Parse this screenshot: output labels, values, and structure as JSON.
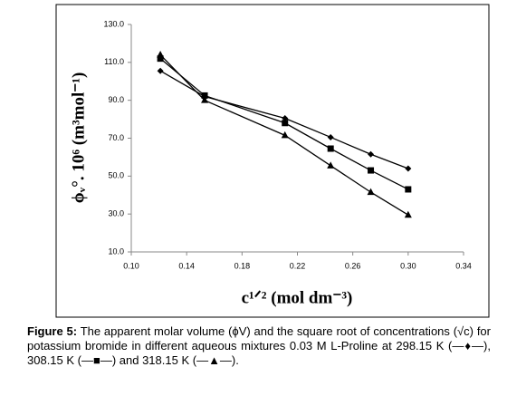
{
  "chart_data": {
    "type": "line",
    "x_label": "c¹ᐟ² (mol dm⁻³)",
    "y_label": "ϕᵥ°. 10⁶ (m³mol⁻¹)",
    "x": [
      0.121,
      0.153,
      0.211,
      0.244,
      0.273,
      0.3
    ],
    "series": [
      {
        "marker": "diamond",
        "color": "#000000",
        "values": [
          105.5,
          92,
          80.5,
          70.5,
          61.5,
          54
        ]
      },
      {
        "marker": "square",
        "color": "#000000",
        "values": [
          112,
          92.5,
          78,
          64.5,
          53,
          43
        ]
      },
      {
        "marker": "triangle",
        "color": "#000000",
        "values": [
          114,
          90,
          71.5,
          55.5,
          41.5,
          29.5
        ]
      }
    ],
    "xlim": [
      0.1,
      0.34
    ],
    "xticks": [
      {
        "value": 0.1,
        "label": "0.10"
      },
      {
        "value": 0.14,
        "label": "0.14"
      },
      {
        "value": 0.18,
        "label": "0.18"
      },
      {
        "value": 0.22,
        "label": "0.22"
      },
      {
        "value": 0.26,
        "label": "0.26"
      },
      {
        "value": 0.3,
        "label": "0.30"
      },
      {
        "value": 0.34,
        "label": "0.34"
      }
    ],
    "ylim": [
      10,
      130
    ],
    "yticks": [
      {
        "value": 10,
        "label": "10.0"
      },
      {
        "value": 30,
        "label": "30.0"
      },
      {
        "value": 50,
        "label": "50.0"
      },
      {
        "value": 70,
        "label": "70.0"
      },
      {
        "value": 90,
        "label": "90.0"
      },
      {
        "value": 110,
        "label": "110.0"
      },
      {
        "value": 130,
        "label": "130.0"
      }
    ],
    "grid": false
  },
  "caption": {
    "label": "Figure 5:",
    "text": "The apparent molar volume (ϕV) and the square root of concentrations (√c) for potassium bromide in different aqueous mixtures 0.03 M L-Proline at 298.15 K (—♦—), 308.15 K (—■—) and 318.15 K (—▲—)."
  }
}
